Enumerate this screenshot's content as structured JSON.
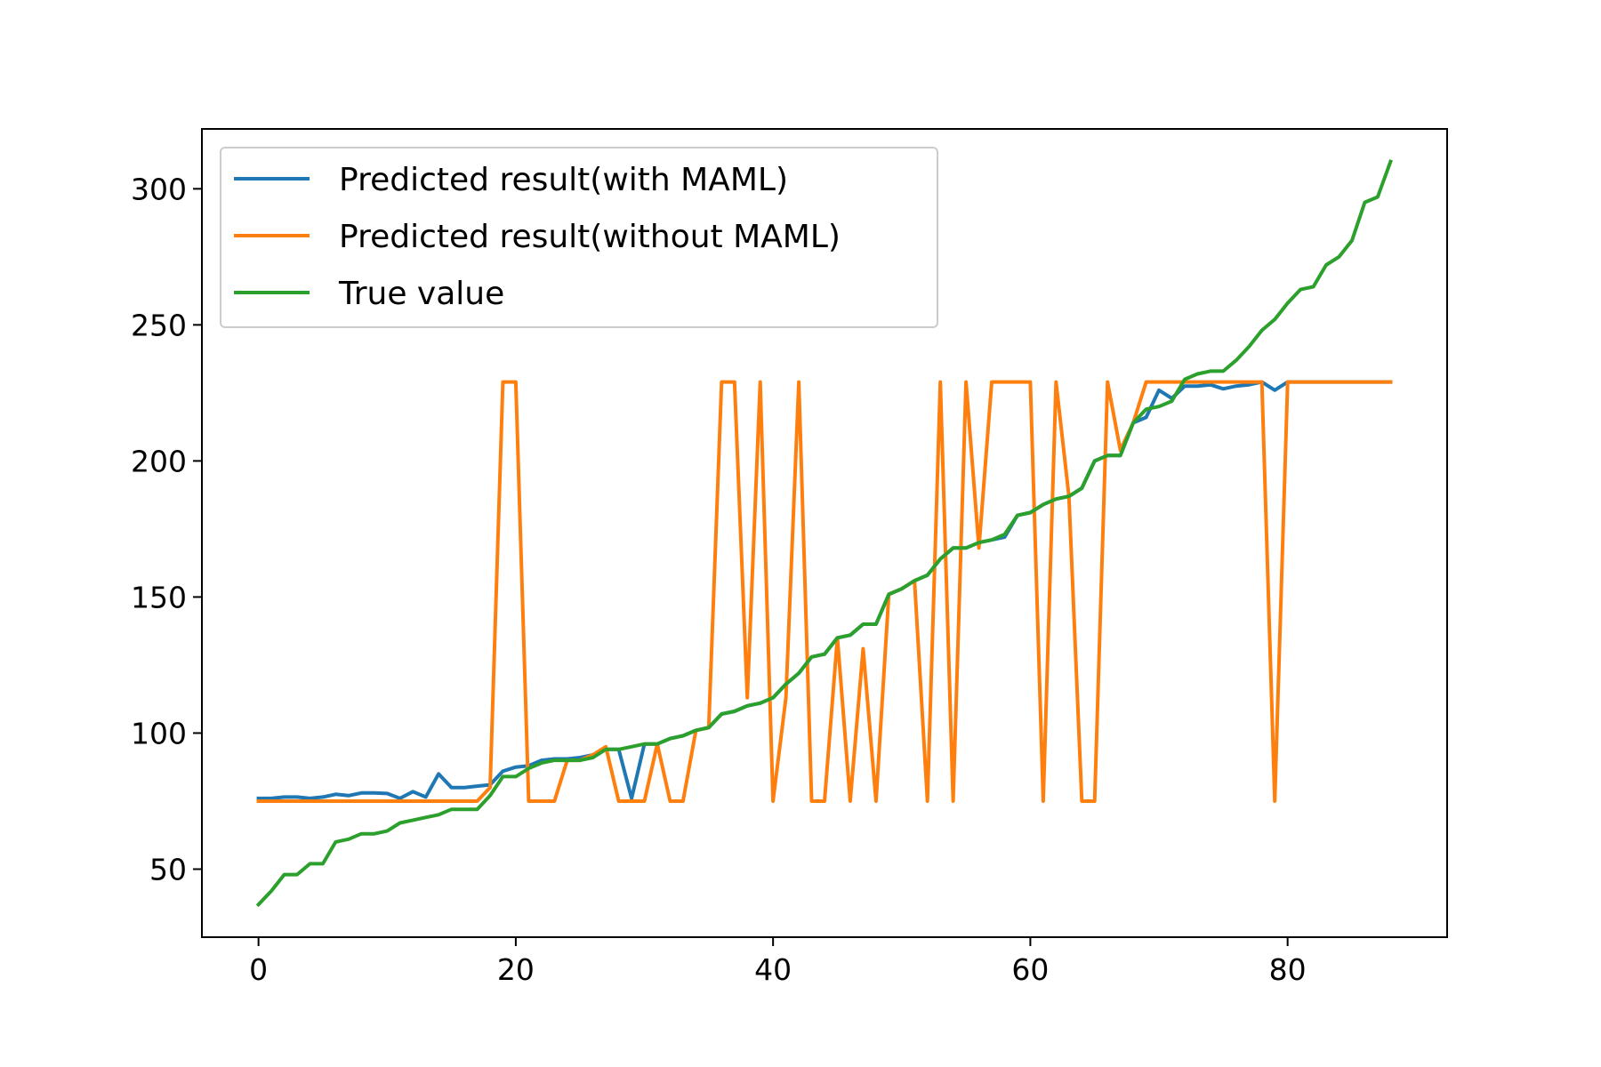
{
  "chart_data": {
    "type": "line",
    "title": "",
    "xlabel": "",
    "ylabel": "",
    "xlim": [
      -4.4,
      92.4
    ],
    "ylim": [
      25,
      322
    ],
    "xticks": [
      0,
      20,
      40,
      60,
      80
    ],
    "yticks": [
      50,
      100,
      150,
      200,
      250,
      300
    ],
    "grid": false,
    "legend_position": "top-left",
    "series": [
      {
        "name": "Predicted result(with MAML)",
        "color": "#1f77b4",
        "x": [
          0,
          1,
          2,
          3,
          4,
          5,
          6,
          7,
          8,
          9,
          10,
          11,
          12,
          13,
          14,
          15,
          16,
          17,
          18,
          19,
          20,
          21,
          22,
          23,
          24,
          25,
          26,
          27,
          28,
          29,
          30,
          31,
          32,
          33,
          34,
          35,
          36,
          37,
          38,
          39,
          40,
          41,
          42,
          43,
          44,
          45,
          46,
          47,
          48,
          49,
          50,
          51,
          52,
          53,
          54,
          55,
          56,
          57,
          58,
          59,
          60,
          61,
          62,
          63,
          64,
          65,
          66,
          67,
          68,
          69,
          70,
          71,
          72,
          73,
          74,
          75,
          76,
          77,
          78,
          79,
          80,
          81,
          82,
          83,
          84,
          85,
          86,
          87,
          88
        ],
        "values": [
          76,
          76,
          76.5,
          76.5,
          76,
          76.5,
          77.5,
          77,
          78,
          78,
          77.8,
          76,
          78.5,
          76.5,
          85,
          80,
          80,
          80.5,
          81,
          86,
          87.5,
          88,
          90,
          90.5,
          90.5,
          91,
          92,
          94,
          94,
          76,
          96,
          96,
          98,
          99,
          101,
          102,
          107,
          108,
          110,
          111,
          113,
          118,
          122,
          128,
          129,
          135,
          136,
          140,
          140,
          151,
          153,
          156,
          158,
          164,
          168,
          168,
          170,
          171,
          172,
          180,
          181,
          184,
          186,
          187,
          190,
          200,
          202,
          202,
          214,
          216,
          226,
          223,
          227.5,
          227.5,
          228,
          226.5,
          227.5,
          228,
          229,
          226,
          229,
          229,
          229,
          229,
          229,
          229,
          229,
          229,
          229
        ]
      },
      {
        "name": "Predicted result(without MAML)",
        "color": "#ff7f0e",
        "x": [
          0,
          1,
          2,
          3,
          4,
          5,
          6,
          7,
          8,
          9,
          10,
          11,
          12,
          13,
          14,
          15,
          16,
          17,
          18,
          19,
          20,
          21,
          22,
          23,
          24,
          25,
          26,
          27,
          28,
          29,
          30,
          31,
          32,
          33,
          34,
          35,
          36,
          37,
          38,
          39,
          40,
          41,
          42,
          43,
          44,
          45,
          46,
          47,
          48,
          49,
          50,
          51,
          52,
          53,
          54,
          55,
          56,
          57,
          58,
          59,
          60,
          61,
          62,
          63,
          64,
          65,
          66,
          67,
          68,
          69,
          70,
          71,
          72,
          73,
          74,
          75,
          76,
          77,
          78,
          79,
          80,
          81,
          82,
          83,
          84,
          85,
          86,
          87,
          88
        ],
        "values": [
          75,
          75,
          75,
          75,
          75,
          75,
          75,
          75,
          75,
          75,
          75,
          75,
          75,
          75,
          75,
          75,
          75,
          75,
          80,
          229,
          229,
          75,
          75,
          75,
          90,
          90,
          92,
          95,
          75,
          75,
          75,
          96,
          75,
          75,
          101,
          102,
          229,
          229,
          113,
          229,
          75,
          113,
          229,
          75,
          75,
          135,
          75,
          131,
          75,
          151,
          153,
          156,
          75,
          229,
          75,
          229,
          168,
          229,
          229,
          229,
          229,
          75,
          229,
          187,
          75,
          75,
          229,
          204,
          214,
          229,
          229,
          229,
          229,
          229,
          229,
          229,
          229,
          229,
          229,
          75,
          229,
          229,
          229,
          229,
          229,
          229,
          229,
          229,
          229
        ]
      },
      {
        "name": "True value",
        "color": "#2ca02c",
        "x": [
          0,
          1,
          2,
          3,
          4,
          5,
          6,
          7,
          8,
          9,
          10,
          11,
          12,
          13,
          14,
          15,
          16,
          17,
          18,
          19,
          20,
          21,
          22,
          23,
          24,
          25,
          26,
          27,
          28,
          29,
          30,
          31,
          32,
          33,
          34,
          35,
          36,
          37,
          38,
          39,
          40,
          41,
          42,
          43,
          44,
          45,
          46,
          47,
          48,
          49,
          50,
          51,
          52,
          53,
          54,
          55,
          56,
          57,
          58,
          59,
          60,
          61,
          62,
          63,
          64,
          65,
          66,
          67,
          68,
          69,
          70,
          71,
          72,
          73,
          74,
          75,
          76,
          77,
          78,
          79,
          80,
          81,
          82,
          83,
          84,
          85,
          86,
          87,
          88
        ],
        "values": [
          37,
          42,
          48,
          48,
          52,
          52,
          60,
          61,
          63,
          63,
          64,
          67,
          68,
          69,
          70,
          72,
          72,
          72,
          77,
          84,
          84,
          87,
          89,
          90,
          90,
          90,
          91,
          94,
          94,
          95,
          96,
          96,
          98,
          99,
          101,
          102,
          107,
          108,
          110,
          111,
          113,
          118,
          122,
          128,
          129,
          135,
          136,
          140,
          140,
          151,
          153,
          156,
          158,
          164,
          168,
          168,
          170,
          171,
          173,
          180,
          181,
          184,
          186,
          187,
          190,
          200,
          202,
          202,
          214,
          219,
          220,
          222,
          230,
          232,
          233,
          233,
          237,
          242,
          248,
          252,
          258,
          263,
          264,
          272,
          275,
          281,
          295,
          297,
          310
        ]
      }
    ]
  }
}
